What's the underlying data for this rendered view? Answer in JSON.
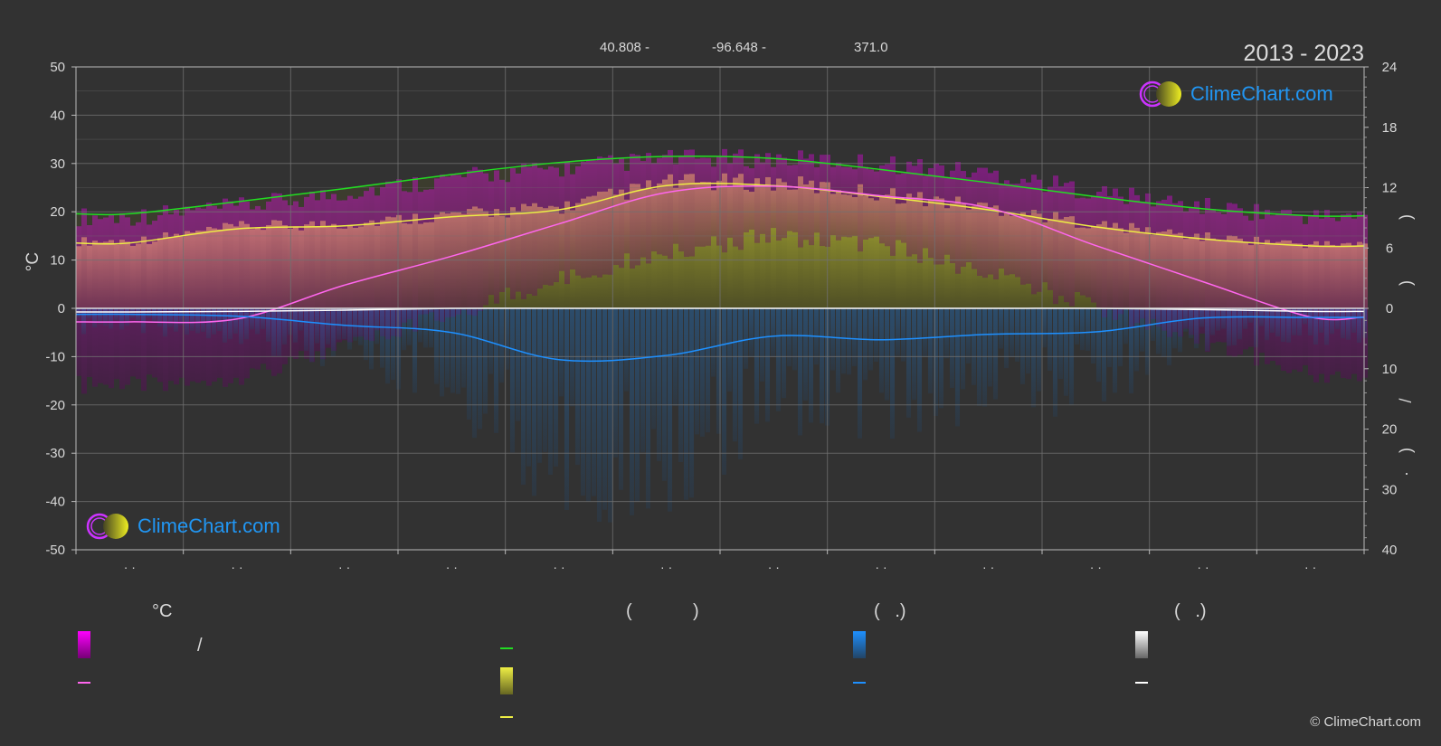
{
  "header": {
    "years": "2013 - 2023",
    "latitude": "40.808 -",
    "longitude": "-96.648 -",
    "elevation": "371.0"
  },
  "brand": {
    "logo_text": "ClimeChart.com",
    "copyright": "© ClimeChart.com"
  },
  "colors": {
    "background": "#323232",
    "daylight": "#22dd22",
    "sunshine": "#eeee44",
    "temp_mean": "#ff66ee",
    "rain": "#1e90ff",
    "snow": "#ffffff",
    "temp_band": "#dd00dd",
    "grid": "#707070"
  },
  "legend": {
    "col1_title": "°C",
    "col1_range_sep": "/",
    "col2_title_open": "(",
    "col2_title_close": ")",
    "col3_title": "(   .)",
    "col4_title": "(   .)"
  },
  "chart_data": {
    "type": "line",
    "x": [
      1,
      2,
      3,
      4,
      5,
      6,
      7,
      8,
      9,
      10,
      11,
      12
    ],
    "xlim": [
      0.5,
      12.5
    ],
    "left_axis": {
      "label": "°C",
      "ylim": [
        -50,
        50
      ],
      "ticks": [
        50,
        40,
        30,
        20,
        10,
        0,
        -10,
        -20,
        -30,
        -40,
        -50
      ]
    },
    "right_axis_top": {
      "label": "",
      "ticks": [
        24,
        18,
        12,
        6,
        0
      ]
    },
    "right_axis_bottom": {
      "label": "",
      "ticks": [
        0,
        10,
        20,
        30,
        40
      ]
    },
    "x_tick_labels": [
      "· ·",
      "· ·",
      "· ·",
      "· ·",
      "· ·",
      "· ·",
      "· ·",
      "· ·",
      "· ·",
      "· ·",
      "· ·",
      "· ·"
    ],
    "grid": true,
    "series": [
      {
        "key": "daylight",
        "axis": "hours",
        "values": [
          9.4,
          10.6,
          11.9,
          13.3,
          14.5,
          15.1,
          14.9,
          13.8,
          12.5,
          11.1,
          9.9,
          9.2
        ]
      },
      {
        "key": "sunshine",
        "axis": "hours",
        "values": [
          6.5,
          7.9,
          8.2,
          9.1,
          9.8,
          12.2,
          12.2,
          11.1,
          9.8,
          8.1,
          6.9,
          6.2
        ]
      },
      {
        "key": "temp_mean",
        "axis": "temperature",
        "values": [
          -2.8,
          -2.2,
          4.8,
          10.8,
          17.5,
          24.0,
          25.3,
          23.3,
          20.8,
          13.0,
          5.5,
          -1.8
        ]
      },
      {
        "key": "rain",
        "axis": "precipitation",
        "values": [
          1.0,
          1.3,
          2.8,
          4.0,
          8.5,
          7.8,
          4.6,
          5.2,
          4.3,
          3.9,
          1.6,
          1.5
        ]
      },
      {
        "key": "snow",
        "axis": "precipitation",
        "values": [
          0.6,
          0.5,
          0.3,
          0.0,
          0.0,
          0.0,
          0.0,
          0.0,
          0.0,
          0.0,
          0.2,
          0.5
        ]
      },
      {
        "key": "temp_max",
        "axis": "temperature",
        "values": [
          17,
          19,
          22,
          25,
          27,
          29,
          29,
          28,
          26,
          22,
          19,
          17
        ]
      },
      {
        "key": "temp_min",
        "axis": "temperature",
        "values": [
          -14,
          -12,
          -6,
          1,
          8,
          14,
          17,
          15,
          9,
          2,
          -5,
          -12
        ]
      }
    ]
  }
}
